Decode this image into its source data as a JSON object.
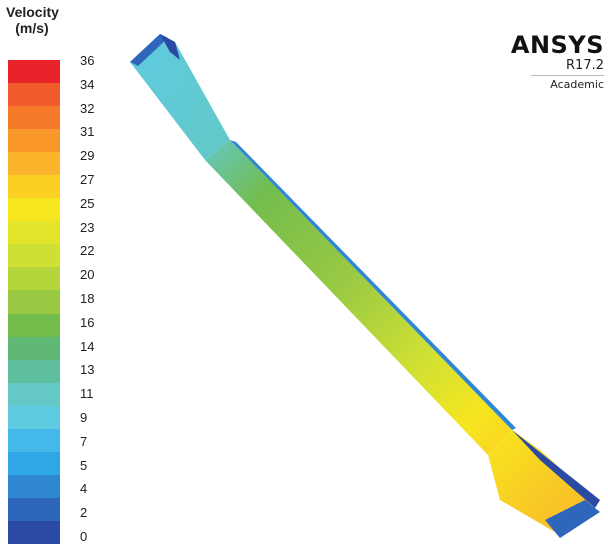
{
  "legend": {
    "title_line1": "Velocity",
    "title_line2": "(m/s)",
    "ticks": [
      "36",
      "34",
      "32",
      "31",
      "29",
      "27",
      "25",
      "23",
      "22",
      "20",
      "18",
      "16",
      "14",
      "13",
      "11",
      "9",
      "7",
      "5",
      "4",
      "2",
      "0"
    ],
    "colors": [
      "#e8242a",
      "#f15a2b",
      "#f57b2b",
      "#f9972a",
      "#fbb42c",
      "#fcd023",
      "#f6e61e",
      "#e3e52a",
      "#cfe034",
      "#b5d53d",
      "#99c943",
      "#73bd4d",
      "#5fb873",
      "#5dbf9d",
      "#63c8c6",
      "#5ecbe1",
      "#44b8e8",
      "#2fa6e6",
      "#2f87d2",
      "#2e66bb",
      "#2a4aa3"
    ]
  },
  "brand": {
    "name": "ANSYS",
    "version": "R17.2",
    "edition": "Academic"
  }
}
